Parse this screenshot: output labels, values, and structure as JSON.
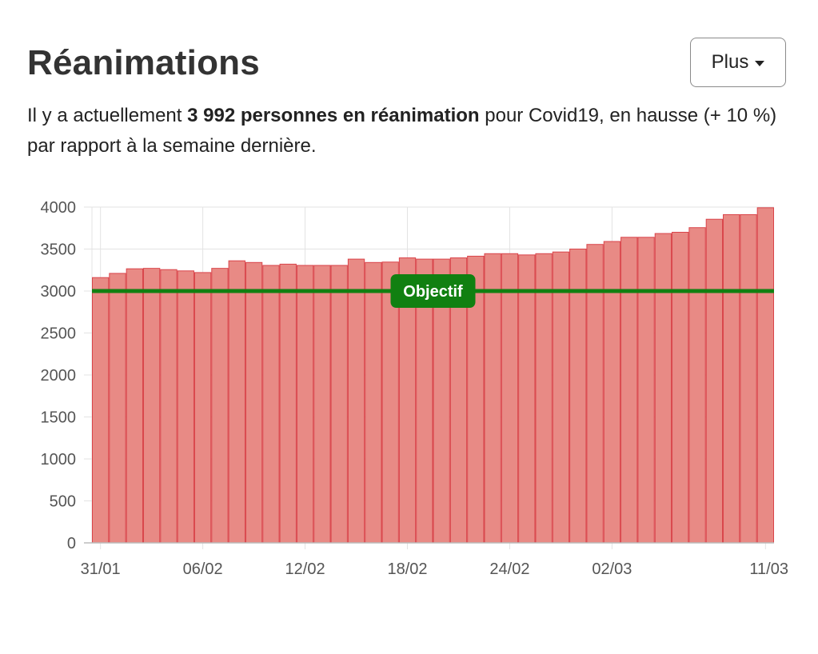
{
  "header": {
    "title": "Réanimations",
    "more_label": "Plus"
  },
  "summary": {
    "part1": "Il y a actuellement ",
    "bold": "3 992 personnes en réanimation",
    "part2": " pour Covid19, en hausse (+ 10 %) par rapport à la semaine dernière."
  },
  "colors": {
    "bar_fill": "#e88a85",
    "bar_stroke": "#d9444a",
    "objective": "#118011",
    "grid": "#e3e3e3"
  },
  "chart_data": {
    "type": "bar",
    "title": "",
    "xlabel": "",
    "ylabel": "",
    "ylim": [
      0,
      4000
    ],
    "yticks": [
      0,
      500,
      1000,
      1500,
      2000,
      2500,
      3000,
      3500,
      4000
    ],
    "xtick_labels": [
      "31/01",
      "06/02",
      "12/02",
      "18/02",
      "24/02",
      "02/03",
      "11/03"
    ],
    "categories": [
      "31/01",
      "01/02",
      "02/02",
      "03/02",
      "04/02",
      "05/02",
      "06/02",
      "07/02",
      "08/02",
      "09/02",
      "10/02",
      "11/02",
      "12/02",
      "13/02",
      "14/02",
      "15/02",
      "16/02",
      "17/02",
      "18/02",
      "19/02",
      "20/02",
      "21/02",
      "22/02",
      "23/02",
      "24/02",
      "25/02",
      "26/02",
      "27/02",
      "28/02",
      "01/03",
      "02/03",
      "03/03",
      "04/03",
      "05/03",
      "06/03",
      "07/03",
      "08/03",
      "09/03",
      "10/03",
      "11/03"
    ],
    "values": [
      3160,
      3210,
      3265,
      3270,
      3255,
      3240,
      3220,
      3270,
      3360,
      3340,
      3305,
      3320,
      3305,
      3305,
      3305,
      3380,
      3340,
      3345,
      3395,
      3380,
      3380,
      3395,
      3415,
      3445,
      3445,
      3430,
      3445,
      3465,
      3500,
      3555,
      3590,
      3640,
      3640,
      3685,
      3700,
      3755,
      3855,
      3910,
      3910,
      3992
    ],
    "reference_line": {
      "value": 3000,
      "label": "Objectif"
    },
    "grid": true,
    "legend": "none"
  }
}
